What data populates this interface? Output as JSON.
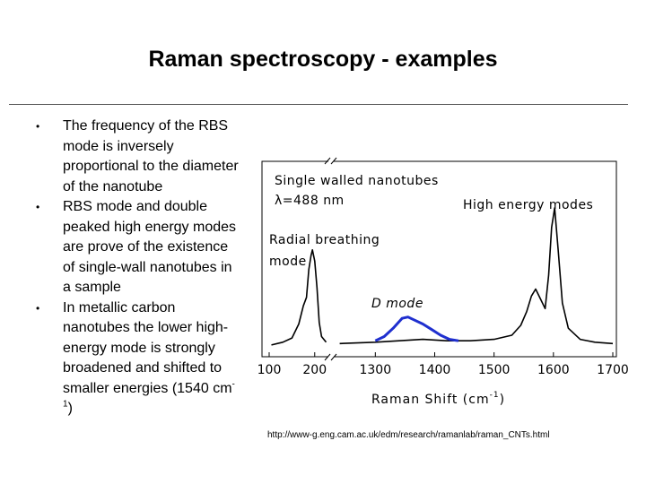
{
  "slide": {
    "title": "Raman spectroscopy - examples",
    "bullets": [
      {
        "text": "The frequency of the RBS mode is inversely proportional to the diameter of the nanotube"
      },
      {
        "text": "RBS mode and double peaked high energy modes are prove of the existence of single-wall nanotubes in a sample"
      },
      {
        "text_pre": "In metallic carbon nanotubes the lower high-energy mode is strongly broadened and shifted to smaller energies (1540 cm",
        "sup": "-1",
        "text_post": ")"
      }
    ],
    "source_url": "http://www-g.eng.cam.ac.uk/edm/research/ramanlab/raman_CNTs.html"
  },
  "chart_data": {
    "type": "line",
    "title": "",
    "xlabel": "Raman Shift (cm",
    "xlabel_sup": "-1",
    "xlabel_close": ")",
    "ylabel": "",
    "grid": false,
    "axis_break": true,
    "x_segments": [
      {
        "range": [
          100,
          230
        ],
        "ticks": [
          100,
          200
        ]
      },
      {
        "range": [
          1230,
          1700
        ],
        "ticks": [
          1300,
          1400,
          1500,
          1600,
          1700
        ]
      }
    ],
    "annotations": {
      "sample": "Single walled nanotubes",
      "wavelength": "λ=488 nm",
      "rbm": "Radial breathing mode",
      "d_mode": "D mode",
      "high_energy": "High energy modes"
    },
    "series": [
      {
        "color": "#000000",
        "x": [
          105,
          130,
          150,
          165,
          175,
          182,
          187,
          192,
          195,
          200,
          205,
          210,
          215,
          225,
          1240,
          1300,
          1340,
          1380,
          1420,
          1460,
          1500,
          1530,
          1545,
          1555,
          1563,
          1570,
          1578,
          1586,
          1592,
          1597,
          1602,
          1608,
          1615,
          1625,
          1645,
          1670,
          1700
        ],
        "y": [
          0.02,
          0.04,
          0.07,
          0.17,
          0.3,
          0.36,
          0.56,
          0.66,
          0.7,
          0.62,
          0.43,
          0.18,
          0.08,
          0.04,
          0.03,
          0.04,
          0.05,
          0.06,
          0.05,
          0.05,
          0.06,
          0.09,
          0.16,
          0.26,
          0.37,
          0.42,
          0.35,
          0.28,
          0.52,
          0.86,
          1.0,
          0.7,
          0.32,
          0.14,
          0.06,
          0.04,
          0.03
        ]
      },
      {
        "color": "#1f2fcf",
        "x": [
          1300,
          1315,
          1330,
          1345,
          1355,
          1365,
          1380,
          1395,
          1410,
          1425,
          1440
        ],
        "y": [
          0.05,
          0.08,
          0.14,
          0.21,
          0.22,
          0.2,
          0.17,
          0.13,
          0.09,
          0.06,
          0.05
        ]
      }
    ]
  }
}
